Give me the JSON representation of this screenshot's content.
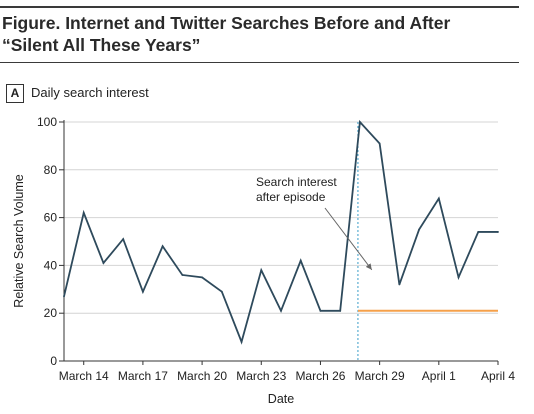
{
  "figure": {
    "title_line1": "Figure. Internet and Twitter Searches Before and After",
    "title_line2": "“Silent All These Years”"
  },
  "panel": {
    "letter": "A",
    "title": "Daily search interest"
  },
  "chart_data": {
    "type": "line",
    "title": "Daily search interest",
    "xlabel": "Date",
    "ylabel": "Relative Search Volume",
    "ylim": [
      0,
      100
    ],
    "yticks": [
      0,
      20,
      40,
      60,
      80,
      100
    ],
    "xticks": [
      {
        "day": 0,
        "label": "March 14"
      },
      {
        "day": 3,
        "label": "March 17"
      },
      {
        "day": 6,
        "label": "March 20"
      },
      {
        "day": 9,
        "label": "March 23"
      },
      {
        "day": 12,
        "label": "March 26"
      },
      {
        "day": 15,
        "label": "March 29"
      },
      {
        "day": 18,
        "label": "April 1"
      },
      {
        "day": 21,
        "label": "April 4"
      }
    ],
    "grid": true,
    "x_dates": [
      "March 13",
      "March 14",
      "March 15",
      "March 16",
      "March 17",
      "March 18",
      "March 19",
      "March 20",
      "March 21",
      "March 22",
      "March 23",
      "March 24",
      "March 25",
      "March 26",
      "March 27",
      "March 28",
      "March 29",
      "March 30",
      "March 31",
      "April 1",
      "April 2",
      "April 3",
      "April 4"
    ],
    "series": [
      {
        "color": "#2e4a5c",
        "x": [
          -1,
          0,
          1,
          2,
          3,
          4,
          5,
          6,
          7,
          8,
          9,
          10,
          11,
          12,
          13,
          14,
          15,
          16,
          17,
          18,
          19,
          20,
          21
        ],
        "values": [
          27,
          62,
          41,
          51,
          29,
          48,
          36,
          35,
          29,
          8,
          38,
          21,
          42,
          21,
          21,
          100,
          91,
          32,
          55,
          68,
          35,
          54,
          54
        ]
      }
    ],
    "baseline": {
      "color": "#f5a04a",
      "x_start": 13.9,
      "x_end": 21,
      "value": 21
    },
    "episode_line": {
      "color": "#3b9dc8",
      "x": 13.9
    },
    "x_domain": [
      -1,
      21
    ],
    "annotation": {
      "line1": "Search interest",
      "line2": "after episode",
      "arrow_to": {
        "x": 14.5,
        "y": 39
      }
    }
  }
}
